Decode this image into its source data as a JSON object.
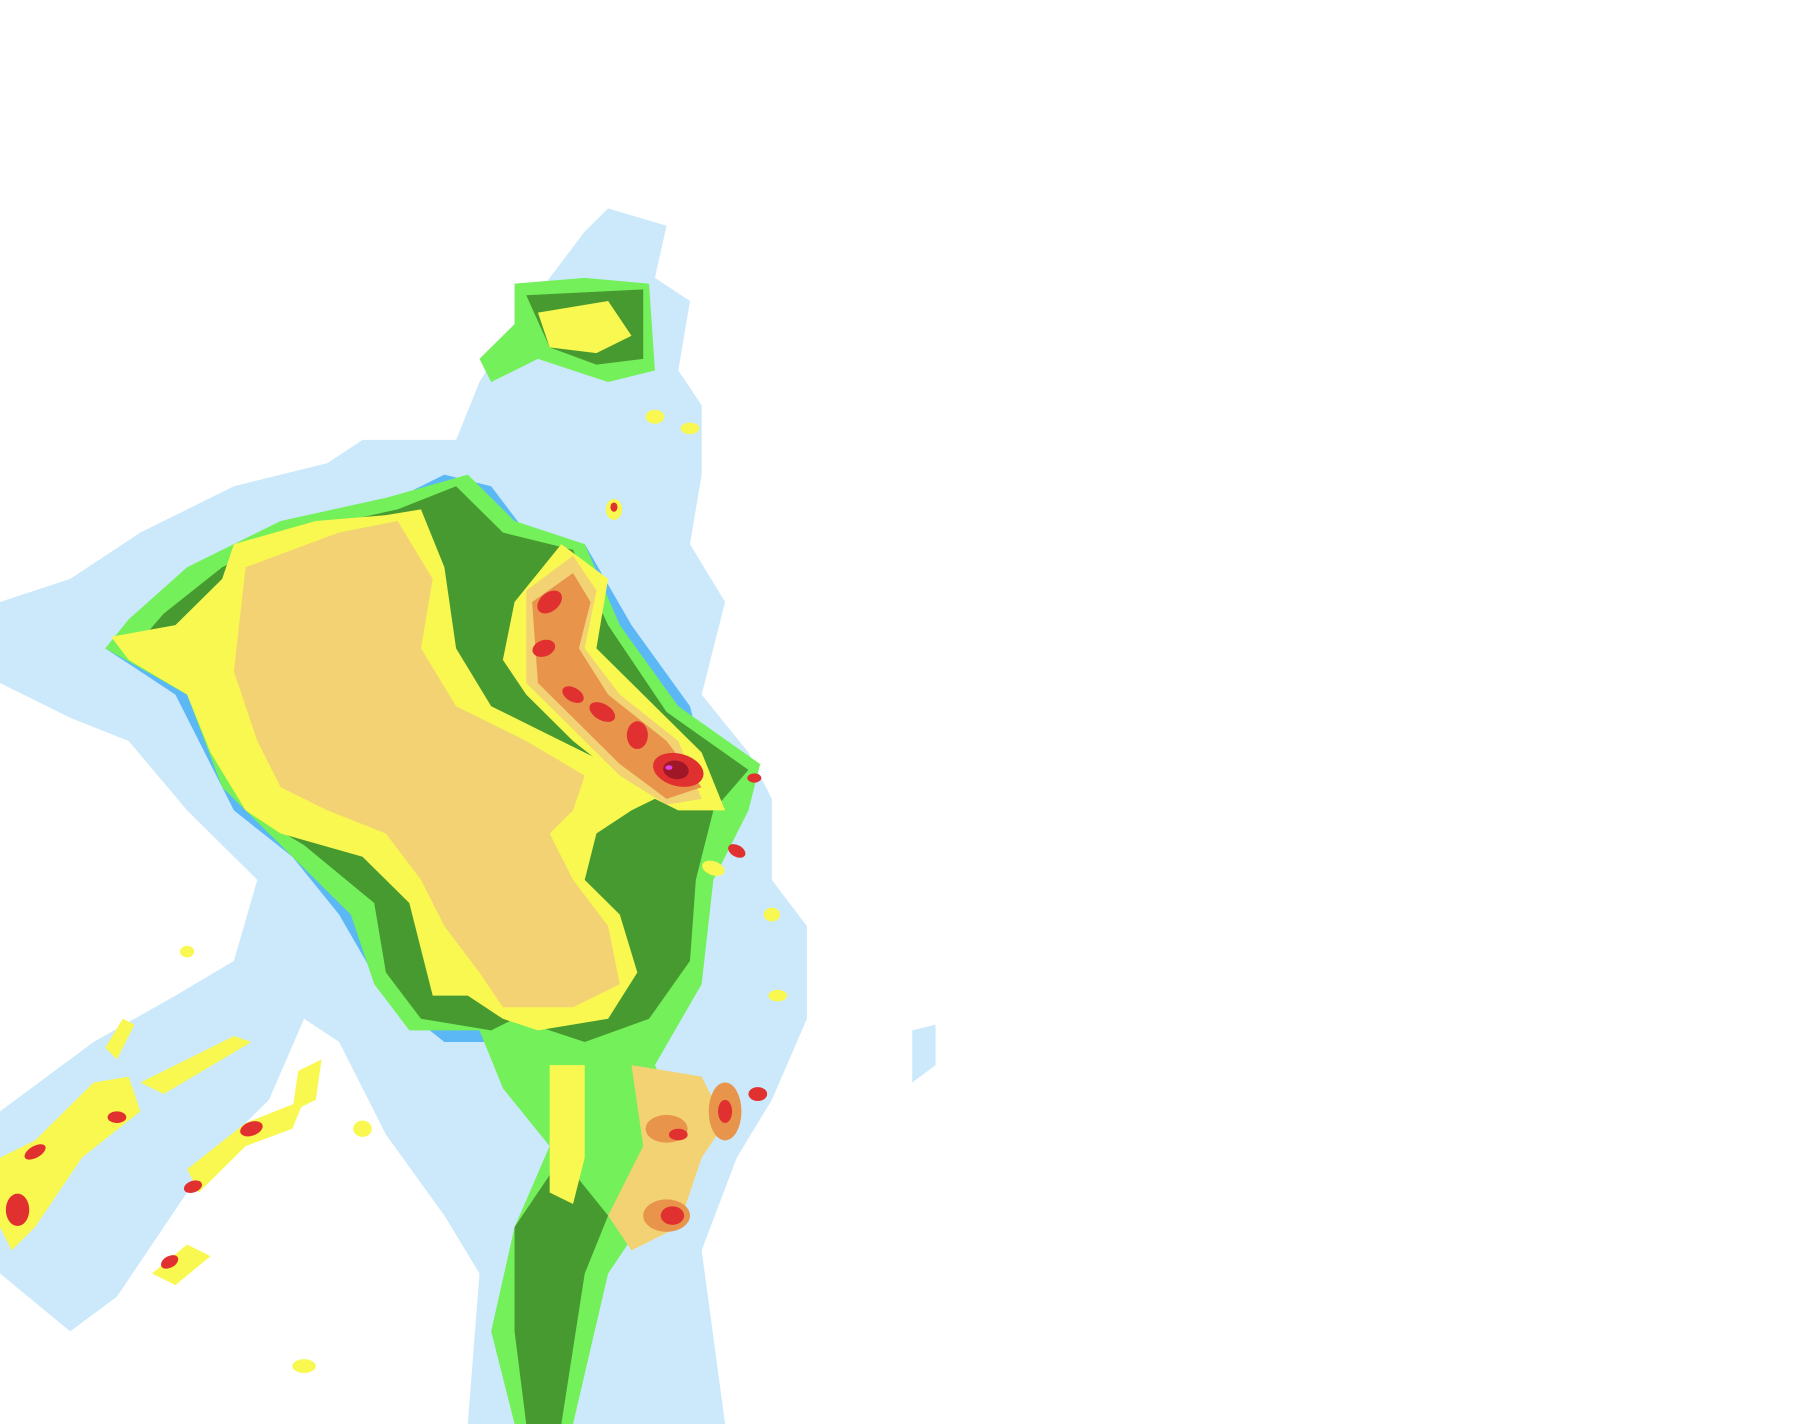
{
  "map": {
    "type": "precipitation-radar-overlay",
    "background_color": "#ffffff",
    "intensity_colors": [
      "#cce9fb",
      "#5bb8f5",
      "#73f05a",
      "#469a30",
      "#f8f850",
      "#f3d274",
      "#e8944a",
      "#e03030",
      "#a01828",
      "#e040e0"
    ]
  }
}
